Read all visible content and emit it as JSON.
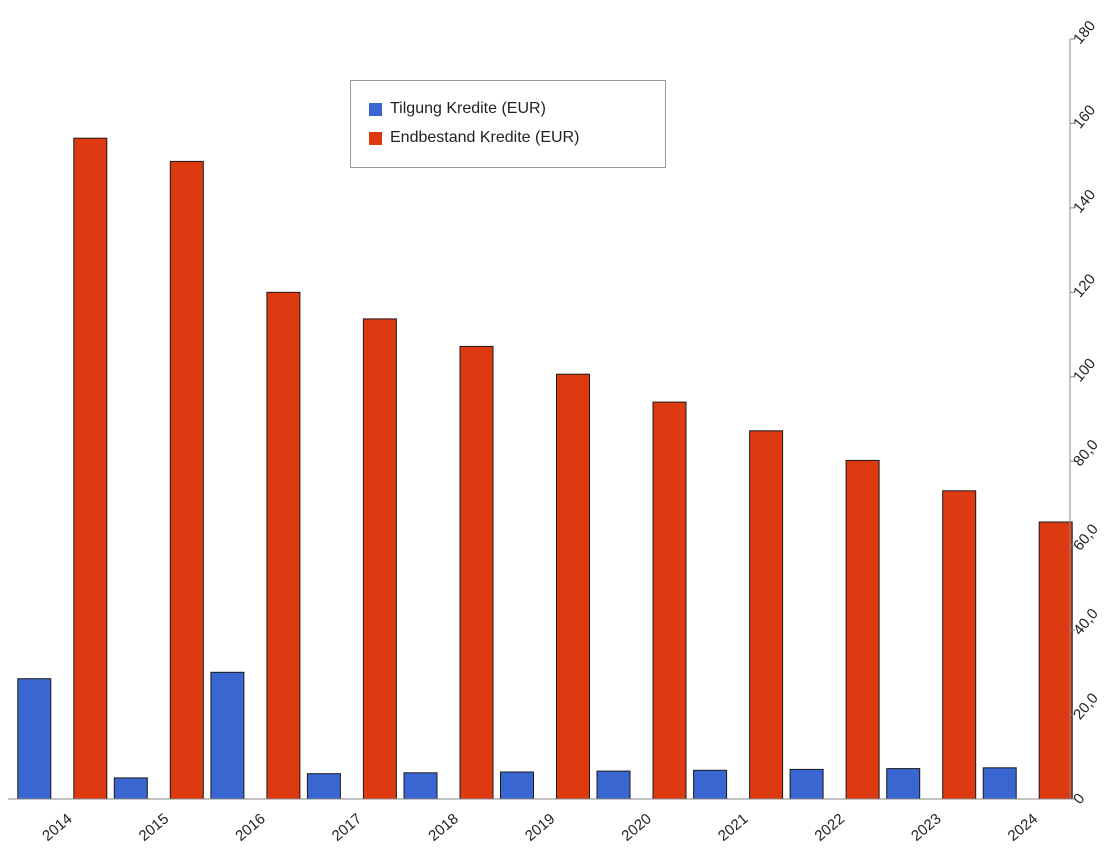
{
  "chart_data": {
    "type": "bar",
    "categories": [
      "2014",
      "2015",
      "2016",
      "2017",
      "2018",
      "2019",
      "2020",
      "2021",
      "2022",
      "2023",
      "2024"
    ],
    "series": [
      {
        "name": "Tilgung Kredite (EUR)",
        "color": "#3a66d1",
        "values": [
          28500,
          5000,
          30000,
          6000,
          6200,
          6400,
          6600,
          6800,
          7000,
          7200,
          7400
        ]
      },
      {
        "name": "Endbestand Kredite (EUR)",
        "color": "#dd3a12",
        "values": [
          156500,
          151000,
          120000,
          113700,
          107200,
          100600,
          94000,
          87200,
          80200,
          73000,
          65600
        ]
      }
    ],
    "y_tick_labels": [
      "0",
      "20,0",
      "40,0",
      "60,0",
      "80,0",
      "100",
      "120",
      "140",
      "160",
      "180"
    ],
    "ylim": [
      0,
      180000
    ],
    "y_axis_side": "right",
    "grid": false,
    "legend_position": "top-center"
  }
}
